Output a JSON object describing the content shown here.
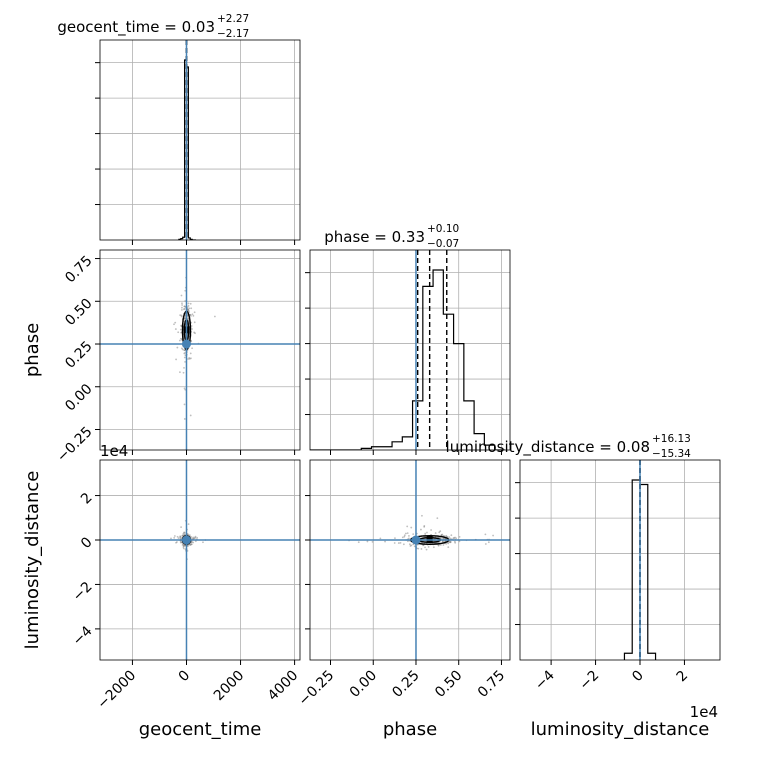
{
  "chart_data": {
    "type": "corner",
    "parameters": [
      "geocent_time",
      "phase",
      "luminosity_distance"
    ],
    "axis_labels": {
      "geocent_time": "geocent_time",
      "phase": "phase",
      "luminosity_distance": "luminosity_distance"
    },
    "truths": {
      "geocent_time": 0,
      "phase": 0.25,
      "luminosity_distance": 0
    },
    "colors": {
      "truth": "#4682b4",
      "hist": "#000000",
      "grid": "#b0b0b0",
      "points": "#808080"
    },
    "ranges": {
      "geocent_time": [
        -3200,
        4200
      ],
      "phase": [
        -0.37,
        0.8
      ],
      "luminosity_distance": [
        -54000,
        36000
      ]
    },
    "ticks": {
      "geocent_time": {
        "values": [
          -2000,
          0,
          2000,
          4000
        ],
        "labels": [
          "−2000",
          "0",
          "2000",
          "4000"
        ]
      },
      "phase": {
        "values": [
          -0.25,
          0.0,
          0.25,
          0.5,
          0.75
        ],
        "labels": [
          "−0.25",
          "0.00",
          "0.25",
          "0.50",
          "0.75"
        ]
      },
      "luminosity_distance": {
        "values": [
          -40000,
          -20000,
          0,
          20000
        ],
        "labels": [
          "−4",
          "−2",
          "0",
          "2"
        ],
        "offset_text": "1e4"
      }
    },
    "panel_titles": [
      {
        "param": "geocent_time",
        "text": "geocent_time = 0.03",
        "sup": "+2.27",
        "sub": "−2.17"
      },
      {
        "param": "phase",
        "text": "phase = 0.33",
        "sup": "+0.10",
        "sub": "−0.07"
      },
      {
        "param": "luminosity_distance",
        "text": "luminosity_distance = 0.08",
        "sup": "+16.13",
        "sub": "−15.34"
      }
    ],
    "histograms": {
      "geocent_time": {
        "edges": [
          -280,
          -210,
          -140,
          -70,
          0,
          70,
          140,
          210,
          280,
          350
        ],
        "counts": [
          0.5,
          1,
          2,
          130,
          125,
          1.5,
          0.5,
          0,
          0
        ]
      },
      "phase": {
        "edges": [
          -0.37,
          -0.31,
          -0.25,
          -0.19,
          -0.13,
          -0.07,
          -0.01,
          0.05,
          0.11,
          0.17,
          0.23,
          0.29,
          0.35,
          0.41,
          0.47,
          0.53,
          0.59,
          0.65,
          0.71,
          0.77
        ],
        "counts": [
          0,
          0,
          0,
          0,
          0,
          1,
          2,
          2,
          5,
          8,
          30,
          100,
          110,
          83,
          65,
          30,
          10,
          3,
          0
        ]
      },
      "luminosity_distance": {
        "edges": [
          -7000,
          -3500,
          0,
          3500,
          7000
        ],
        "counts": [
          3,
          80,
          78,
          3
        ]
      }
    },
    "quantiles": {
      "geocent_time": [
        -2.14,
        0.03,
        2.3
      ],
      "phase": [
        0.26,
        0.33,
        0.43
      ],
      "luminosity_distance": [
        -15.26,
        0.08,
        16.21
      ]
    }
  }
}
